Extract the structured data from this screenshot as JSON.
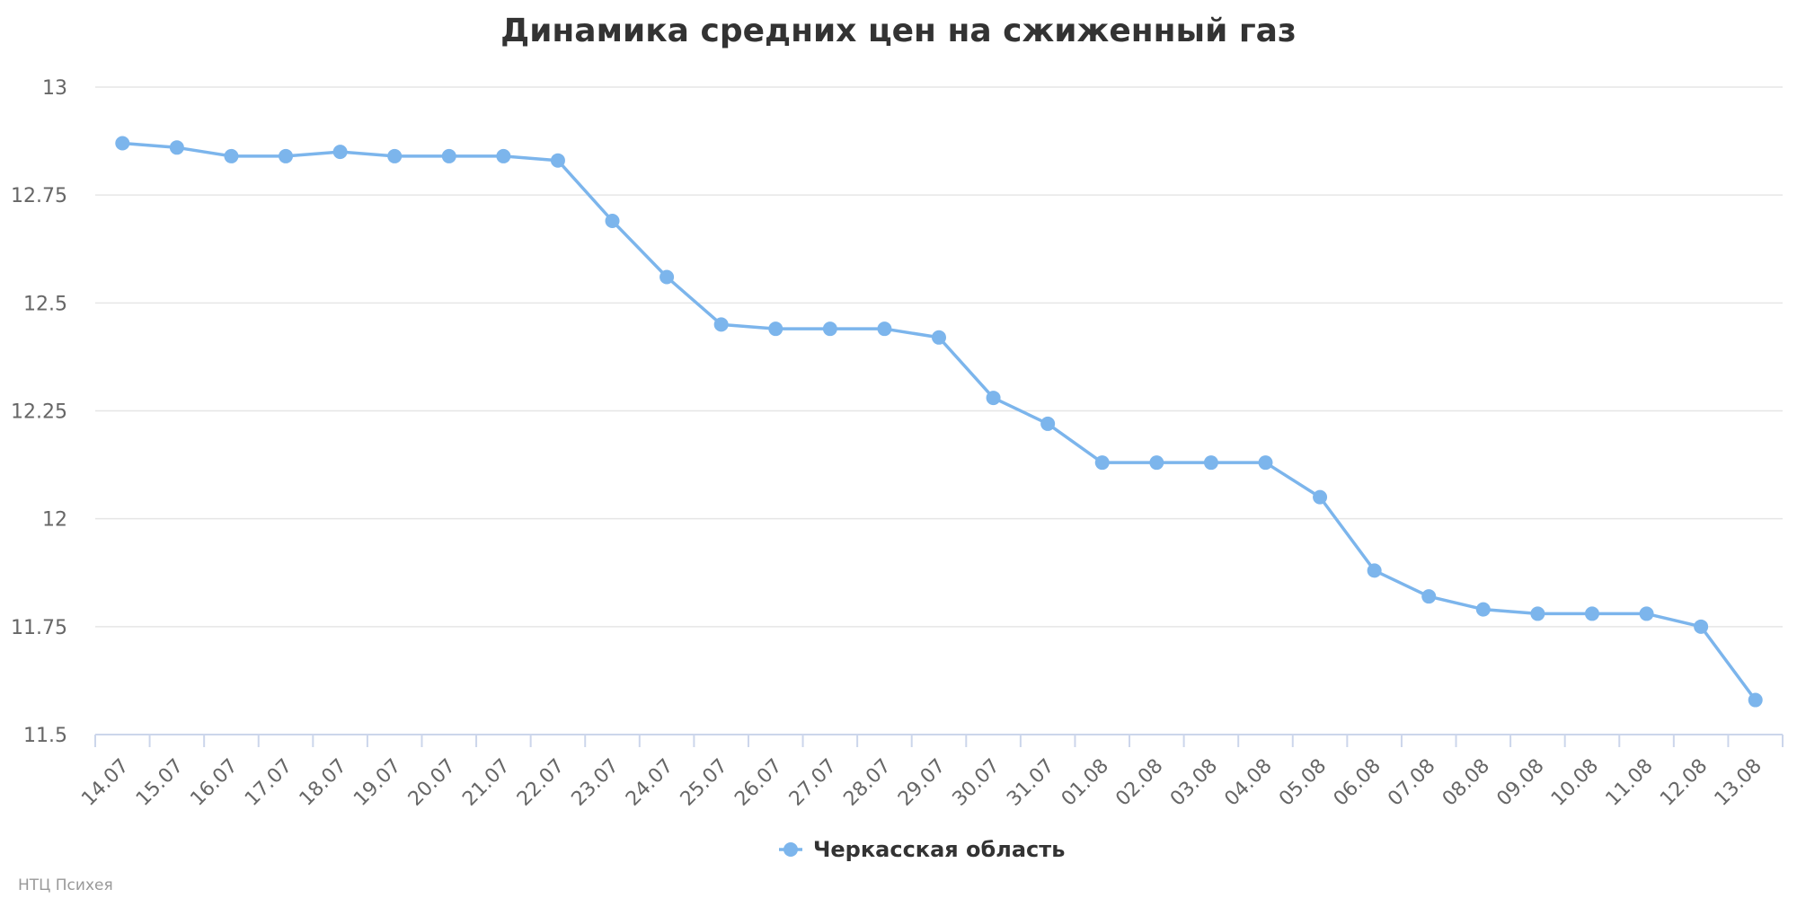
{
  "chart_data": {
    "type": "line",
    "title": "Динамика средних цен на сжиженный газ",
    "xlabel": "",
    "ylabel": "",
    "categories": [
      "14.07",
      "15.07",
      "16.07",
      "17.07",
      "18.07",
      "19.07",
      "20.07",
      "21.07",
      "22.07",
      "23.07",
      "24.07",
      "25.07",
      "26.07",
      "27.07",
      "28.07",
      "29.07",
      "30.07",
      "31.07",
      "01.08",
      "02.08",
      "03.08",
      "04.08",
      "05.08",
      "06.08",
      "07.08",
      "08.08",
      "09.08",
      "10.08",
      "11.08",
      "12.08",
      "13.08"
    ],
    "ylim": [
      11.5,
      13
    ],
    "yticks": [
      "11.5",
      "11.75",
      "12",
      "12.25",
      "12.5",
      "12.75",
      "13"
    ],
    "grid": true,
    "legend_position": "bottom-center",
    "series": [
      {
        "name": "Черкасская область",
        "color": "#7cb5ec",
        "values": [
          12.87,
          12.86,
          12.84,
          12.84,
          12.85,
          12.84,
          12.84,
          12.84,
          12.83,
          12.69,
          12.56,
          12.45,
          12.44,
          12.44,
          12.44,
          12.42,
          12.28,
          12.22,
          12.13,
          12.13,
          12.13,
          12.13,
          12.05,
          11.88,
          11.82,
          11.79,
          11.78,
          11.78,
          11.78,
          11.75,
          11.58
        ]
      }
    ]
  },
  "credits": "НТЦ Психея"
}
